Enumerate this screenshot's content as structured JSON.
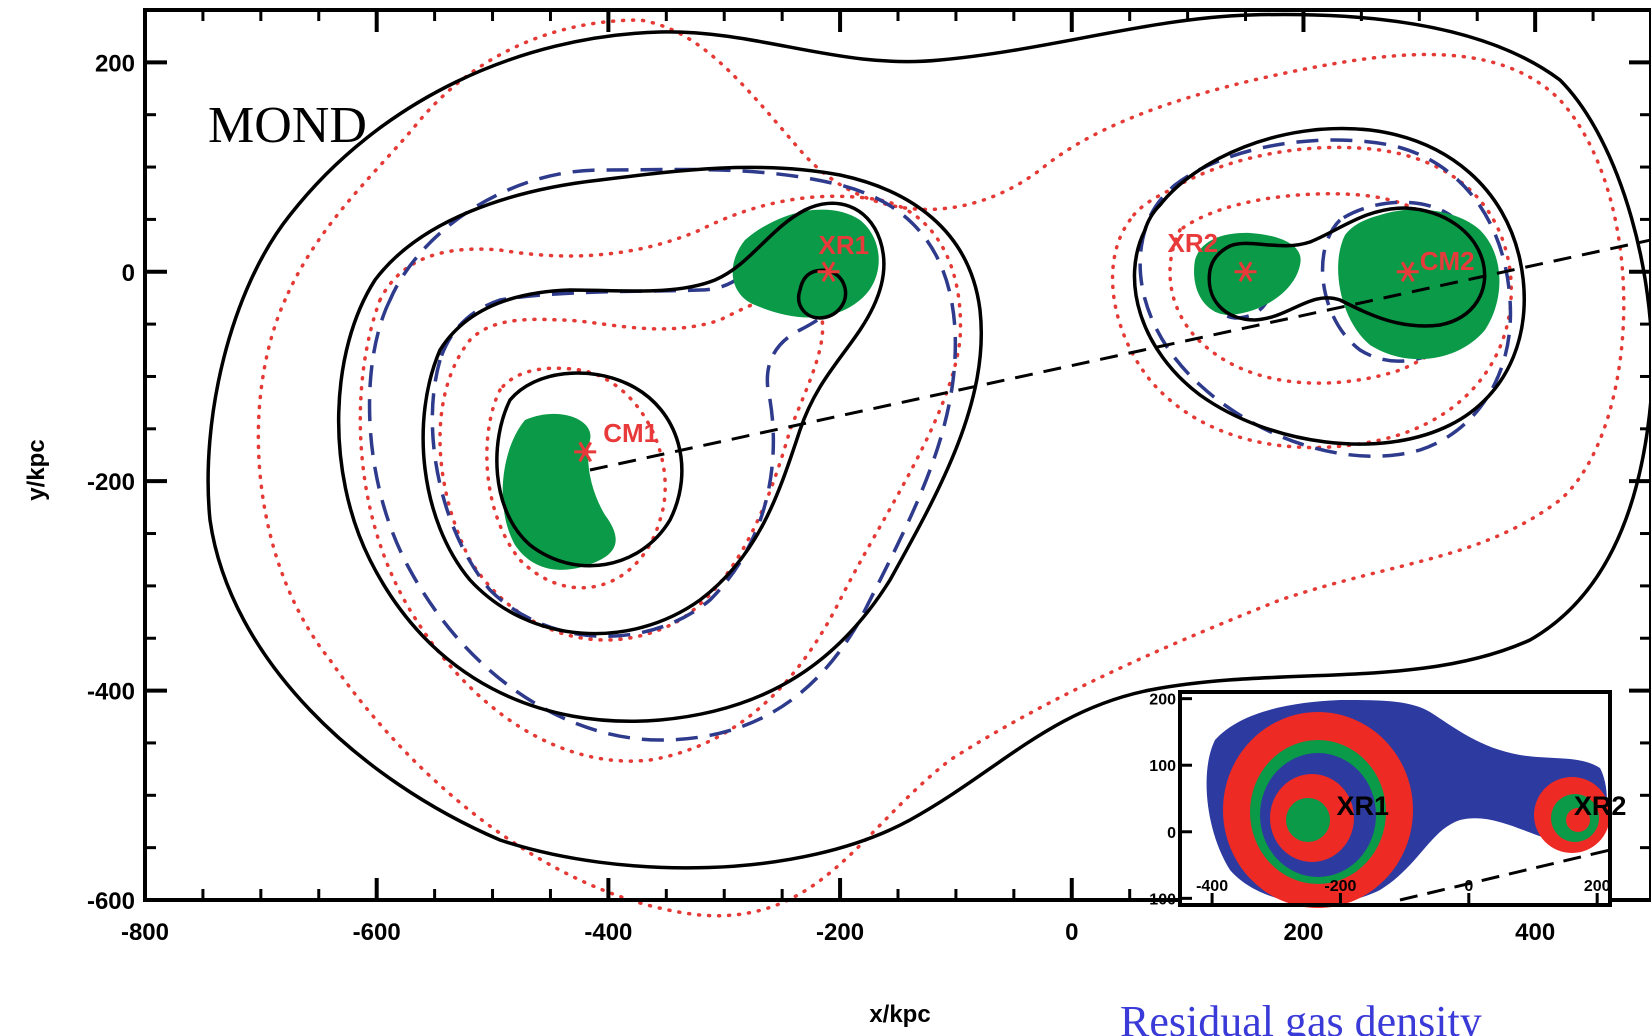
{
  "chart_data": {
    "type": "contour",
    "panel_label": "MOND",
    "xlabel": "x/kpc",
    "ylabel": "y/kpc",
    "xlim": [
      -800,
      500
    ],
    "ylim": [
      -600,
      250
    ],
    "xticks": [
      "-800",
      "-600",
      "-400",
      "-200",
      "0",
      "200",
      "400"
    ],
    "xtick_values": [
      -800,
      -600,
      -400,
      -200,
      0,
      200,
      400
    ],
    "yticks": [
      "200",
      "0",
      "-200",
      "-400",
      "-600"
    ],
    "ytick_values": [
      200,
      0,
      -200,
      -400,
      -600
    ],
    "markers": [
      {
        "label": "CM1",
        "x": -420,
        "y": -172
      },
      {
        "label": "XR1",
        "x": -210,
        "y": 0
      },
      {
        "label": "XR2",
        "x": 150,
        "y": 0
      },
      {
        "label": "CM2",
        "x": 290,
        "y": 0
      }
    ],
    "axis_line": {
      "from": [
        -420,
        -172
      ],
      "to": [
        500,
        40
      ]
    },
    "styles": {
      "solid": "#000000",
      "dashed": "#2e3a8c",
      "dotted": "#e53935",
      "fill": "#0a9a48"
    },
    "caption": "Residual gas density",
    "inset": {
      "xlim": [
        -450,
        220
      ],
      "ylim": [
        -110,
        210
      ],
      "xticks": [
        "-400",
        "-200",
        "0",
        "200"
      ],
      "xtick_values": [
        -400,
        -200,
        0,
        200
      ],
      "yticks": [
        "200",
        "100",
        "0",
        "-100"
      ],
      "ytick_values": [
        200,
        100,
        0,
        -100
      ],
      "markers": [
        {
          "label": "XR1",
          "x": -200,
          "y": 25
        },
        {
          "label": "XR2",
          "x": 170,
          "y": 25
        }
      ],
      "colors": {
        "outer": "#2d3aa0",
        "mid": "#ee2a24",
        "inner": "#0a9a48"
      }
    }
  }
}
